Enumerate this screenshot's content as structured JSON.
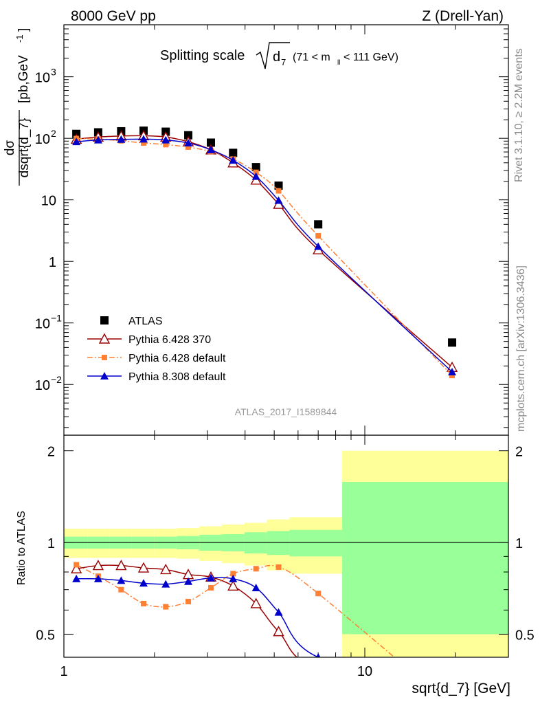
{
  "header": {
    "left": "8000 GeV pp",
    "right": "Z (Drell-Yan)"
  },
  "side_labels": {
    "rivet": "Rivet 3.1.10, ≥ 2.2M events",
    "mcplots": "mcplots.cern.ch [arXiv:1306.3436]"
  },
  "plot_title": {
    "main": "Splitting scale",
    "sqrt_arg": "d",
    "sqrt_sub": "7",
    "range_pre": "(71 < m",
    "range_sub": "ll",
    "range_post": " < 111 GeV)"
  },
  "analysis_tag": "ATLAS_2017_I1589844",
  "axes": {
    "y_top_label": "dσ / dsqrt{d_7} [pb,GeV⁻¹]",
    "y_top_num": "dσ",
    "y_top_den": "dsqrt{d_7}",
    "y_top_unit": "[pb,GeV",
    "y_top_unit_exp": "-1",
    "y_top_unit_close": "]",
    "y_bottom_label": "Ratio to ATLAS",
    "x_label": "sqrt{d_7} [GeV]",
    "top_ticks": [
      {
        "base": "10",
        "exp": "−2",
        "value": 0.01
      },
      {
        "base": "10",
        "exp": "−1",
        "value": 0.1
      },
      {
        "base": "1",
        "exp": "",
        "value": 1
      },
      {
        "base": "10",
        "exp": "",
        "value": 10
      },
      {
        "base": "10",
        "exp": "2",
        "value": 100
      },
      {
        "base": "10",
        "exp": "3",
        "value": 1000
      }
    ],
    "ratio_ticks": [
      "0.5",
      "1",
      "2"
    ],
    "x_ticks": [
      "1",
      "10"
    ]
  },
  "legend": [
    {
      "label": "ATLAS",
      "color": "#000000",
      "marker": "square"
    },
    {
      "label": "Pythia 6.428 370",
      "color": "#990000",
      "marker": "open-triangle"
    },
    {
      "label": "Pythia 6.428 default",
      "color": "#ff7f33",
      "marker": "small-square"
    },
    {
      "label": "Pythia 8.308 default",
      "color": "#0000cc",
      "marker": "triangle"
    }
  ],
  "chart_data": {
    "type": "line",
    "x_scale": "log",
    "y_scale": "log",
    "xlim": [
      1,
      30
    ],
    "ylim": [
      0.0015,
      7000
    ],
    "ratio_ylim": [
      0.42,
      2.25
    ],
    "ratio_y_scale": "log",
    "x": [
      1.1,
      1.3,
      1.55,
      1.84,
      2.18,
      2.59,
      3.08,
      3.65,
      4.35,
      5.17,
      7.0,
      19.5
    ],
    "bins": [
      1.0,
      1.2,
      1.42,
      1.68,
      2.0,
      2.37,
      2.82,
      3.35,
      3.98,
      4.73,
      5.62,
      8.41,
      30.0
    ],
    "series": [
      {
        "name": "ATLAS",
        "values": [
          118,
          125,
          130,
          133,
          128,
          112,
          85,
          58,
          34,
          17,
          4.0,
          0.048
        ]
      },
      {
        "name": "Pythia 6.428 370",
        "values": [
          97,
          105,
          109,
          110,
          105,
          88,
          65,
          40,
          21,
          8.5,
          1.55,
          0.019
        ]
      },
      {
        "name": "Pythia 6.428 default",
        "values": [
          99,
          97,
          91,
          84,
          79,
          72,
          61,
          46,
          28,
          14,
          2.6,
          0.014
        ]
      },
      {
        "name": "Pythia 8.308 default",
        "values": [
          88,
          94,
          96,
          97,
          94,
          84,
          65,
          44,
          24,
          9.8,
          1.75,
          0.016
        ]
      }
    ],
    "ratio_series": [
      {
        "name": "Pythia 6.428 370",
        "values": [
          0.82,
          0.84,
          0.84,
          0.825,
          0.815,
          0.785,
          0.77,
          0.72,
          0.63,
          0.51,
          0.39,
          0.395
        ]
      },
      {
        "name": "Pythia 6.428 default",
        "values": [
          0.845,
          0.775,
          0.7,
          0.63,
          0.615,
          0.64,
          0.71,
          0.79,
          0.82,
          0.83,
          0.68,
          0.29
        ]
      },
      {
        "name": "Pythia 8.308 default",
        "values": [
          0.76,
          0.76,
          0.75,
          0.735,
          0.73,
          0.745,
          0.765,
          0.76,
          0.71,
          0.59,
          0.42,
          0.33
        ]
      }
    ],
    "uncertainty_bands": {
      "green_lo": [
        0.955,
        0.955,
        0.955,
        0.955,
        0.955,
        0.95,
        0.94,
        0.935,
        0.92,
        0.91,
        0.9,
        0.5
      ],
      "green_hi": [
        1.045,
        1.045,
        1.045,
        1.045,
        1.045,
        1.05,
        1.06,
        1.065,
        1.08,
        1.09,
        1.1,
        1.58
      ],
      "yellow_lo": [
        0.89,
        0.89,
        0.89,
        0.89,
        0.89,
        0.885,
        0.87,
        0.855,
        0.84,
        0.81,
        0.79,
        0.3
      ],
      "yellow_hi": [
        1.11,
        1.11,
        1.11,
        1.11,
        1.11,
        1.115,
        1.13,
        1.145,
        1.16,
        1.19,
        1.21,
        2.0
      ],
      "green_color": "#99ff99",
      "yellow_color": "#ffff99"
    }
  }
}
